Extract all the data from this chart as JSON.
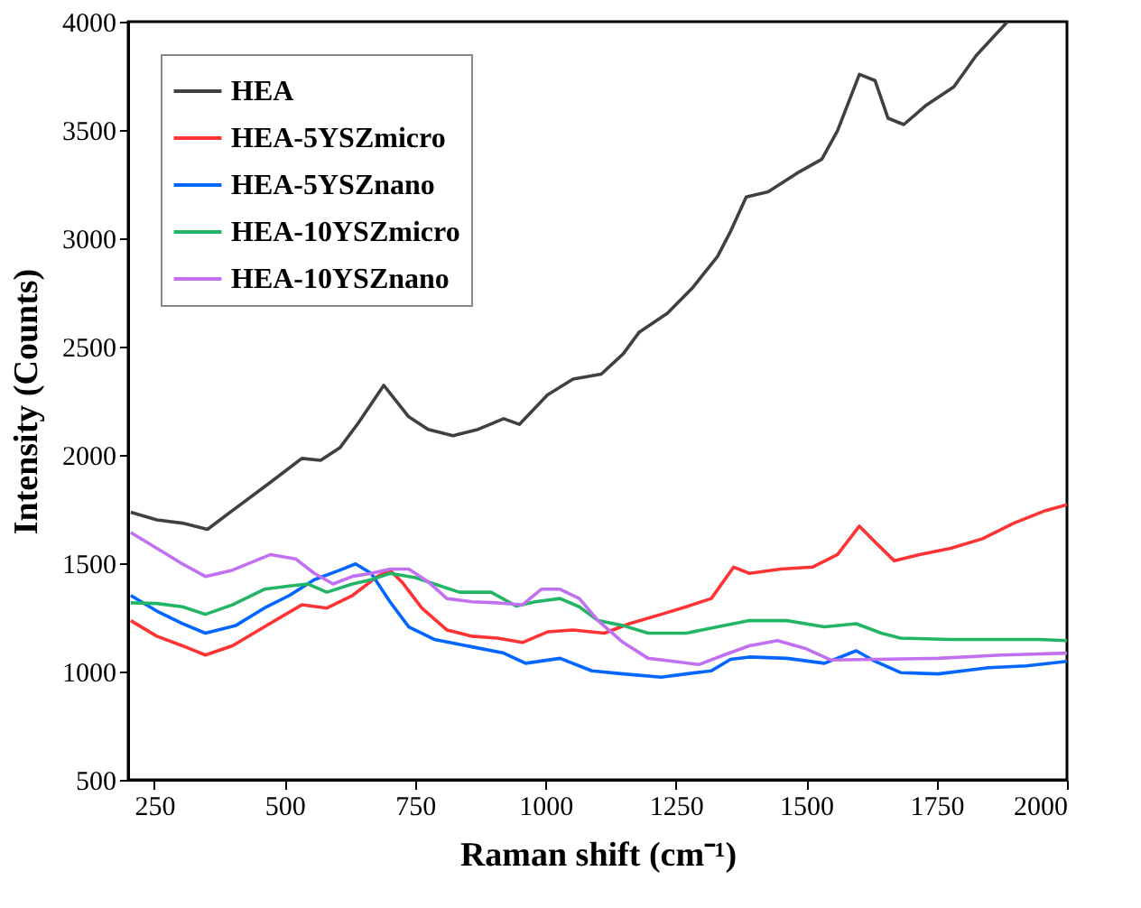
{
  "chart_data": {
    "type": "line",
    "xlabel": "Raman shift (cm⁻¹)",
    "ylabel": "Intensity (Counts)",
    "xlim": [
      200,
      2000
    ],
    "xticks": [
      250,
      500,
      750,
      1000,
      1250,
      1500,
      1750,
      2000
    ],
    "ylim": [
      500,
      4000
    ],
    "yticks": [
      500,
      1000,
      1500,
      2000,
      2500,
      3000,
      3500,
      4000
    ],
    "grid": false,
    "legend": "top left",
    "line_style": "solid",
    "series": [
      {
        "name": "HEA",
        "color": "#404040",
        "x": [
          205,
          255,
          304,
          352,
          400,
          473,
          533,
          569,
          606,
          642,
          690,
          738,
          775,
          823,
          871,
          920,
          950,
          1004,
          1053,
          1107,
          1149,
          1180,
          1234,
          1282,
          1330,
          1355,
          1385,
          1427,
          1487,
          1530,
          1560,
          1602,
          1632,
          1657,
          1687,
          1729,
          1783,
          1826,
          1886
        ],
        "values": [
          1735,
          1700,
          1685,
          1656,
          1743,
          1874,
          1984,
          1975,
          2033,
          2150,
          2321,
          2176,
          2118,
          2089,
          2118,
          2167,
          2141,
          2277,
          2350,
          2373,
          2466,
          2567,
          2654,
          2771,
          2916,
          3032,
          3191,
          3215,
          3307,
          3365,
          3496,
          3757,
          3728,
          3554,
          3525,
          3612,
          3699,
          3844,
          4000
        ]
      },
      {
        "name": "HEA-5YSZmicro",
        "color": "#ff3333",
        "x": [
          205,
          255,
          304,
          348,
          400,
          461,
          533,
          581,
          630,
          678,
          702,
          726,
          763,
          811,
          859,
          908,
          956,
          1004,
          1053,
          1113,
          1161,
          1222,
          1270,
          1318,
          1361,
          1391,
          1451,
          1512,
          1560,
          1602,
          1632,
          1669,
          1717,
          1777,
          1838,
          1898,
          1959,
          2000
        ],
        "values": [
          1235,
          1163,
          1119,
          1076,
          1119,
          1206,
          1308,
          1293,
          1351,
          1439,
          1468,
          1410,
          1293,
          1192,
          1163,
          1154,
          1134,
          1183,
          1192,
          1177,
          1221,
          1264,
          1299,
          1337,
          1482,
          1453,
          1473,
          1482,
          1540,
          1671,
          1598,
          1511,
          1540,
          1569,
          1613,
          1685,
          1743,
          1770
        ]
      },
      {
        "name": "HEA-5YSZnano",
        "color": "#0066ff",
        "x": [
          205,
          255,
          304,
          348,
          406,
          461,
          509,
          557,
          606,
          636,
          666,
          702,
          738,
          787,
          859,
          920,
          962,
          1028,
          1089,
          1149,
          1222,
          1270,
          1318,
          1355,
          1391,
          1463,
          1535,
          1596,
          1632,
          1681,
          1753,
          1850,
          1922,
          2000
        ],
        "values": [
          1351,
          1279,
          1221,
          1177,
          1212,
          1293,
          1351,
          1424,
          1468,
          1497,
          1453,
          1322,
          1206,
          1148,
          1114,
          1085,
          1038,
          1061,
          1003,
          989,
          974,
          989,
          1003,
          1056,
          1067,
          1061,
          1038,
          1096,
          1047,
          995,
          989,
          1018,
          1026,
          1047
        ]
      },
      {
        "name": "HEA-10YSZmicro",
        "color": "#22b566",
        "x": [
          205,
          255,
          304,
          348,
          400,
          461,
          509,
          545,
          581,
          630,
          666,
          702,
          751,
          787,
          835,
          896,
          944,
          980,
          1028,
          1065,
          1101,
          1149,
          1197,
          1270,
          1330,
          1391,
          1463,
          1535,
          1596,
          1644,
          1681,
          1777,
          1874,
          1946,
          2000
        ],
        "values": [
          1317,
          1314,
          1299,
          1264,
          1308,
          1380,
          1395,
          1404,
          1366,
          1404,
          1424,
          1453,
          1433,
          1404,
          1366,
          1366,
          1302,
          1322,
          1337,
          1299,
          1235,
          1212,
          1177,
          1177,
          1206,
          1235,
          1235,
          1206,
          1221,
          1177,
          1154,
          1148,
          1148,
          1148,
          1143
        ]
      },
      {
        "name": "HEA-10YSZnano",
        "color": "#c070f0",
        "x": [
          205,
          255,
          304,
          348,
          400,
          473,
          521,
          557,
          593,
          630,
          666,
          702,
          738,
          775,
          811,
          859,
          908,
          956,
          992,
          1028,
          1065,
          1101,
          1149,
          1197,
          1246,
          1294,
          1342,
          1391,
          1445,
          1500,
          1548,
          1632,
          1753,
          1874,
          2000
        ],
        "values": [
          1642,
          1569,
          1497,
          1439,
          1468,
          1540,
          1520,
          1453,
          1404,
          1439,
          1453,
          1473,
          1473,
          1415,
          1337,
          1322,
          1317,
          1308,
          1380,
          1380,
          1337,
          1235,
          1134,
          1061,
          1047,
          1032,
          1076,
          1119,
          1143,
          1105,
          1053,
          1056,
          1061,
          1076,
          1085
        ]
      }
    ]
  }
}
